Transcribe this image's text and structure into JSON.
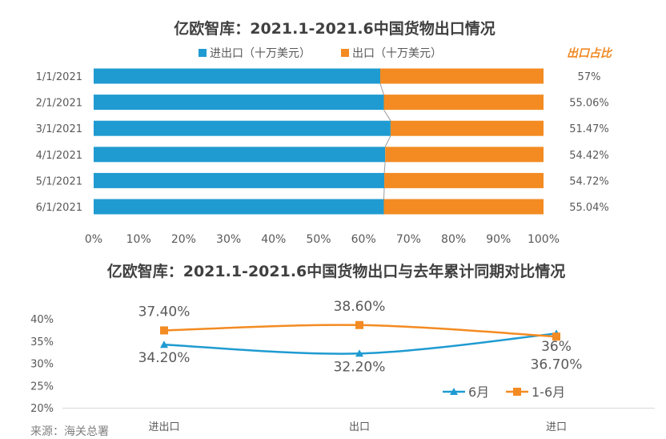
{
  "chart_data": [
    {
      "type": "bar",
      "stacked": true,
      "orientation": "horizontal",
      "percent": true,
      "title": "亿欧智库：2021.1-2021.6中国货物出口情况",
      "legend": [
        "进出口（十万美元）",
        "出口（十万美元）"
      ],
      "series_colors": [
        "#1f9bd1",
        "#f38b22"
      ],
      "categories": [
        "1/1/2021",
        "2/1/2021",
        "3/1/2021",
        "4/1/2021",
        "5/1/2021",
        "6/1/2021"
      ],
      "series": [
        {
          "name": "进出口（十万美元）",
          "values": [
            63.7,
            64.5,
            66.0,
            64.8,
            64.6,
            64.5
          ]
        },
        {
          "name": "出口（十万美元）",
          "values": [
            36.3,
            35.5,
            34.0,
            35.2,
            35.4,
            35.5
          ]
        }
      ],
      "ratio_header": "出口占比",
      "ratio_labels": [
        "57%",
        "55.06%",
        "51.47%",
        "54.42%",
        "54.72%",
        "55.04%"
      ],
      "xticks": [
        "0%",
        "10%",
        "20%",
        "30%",
        "40%",
        "50%",
        "60%",
        "70%",
        "80%",
        "90%",
        "100%"
      ],
      "xlim": [
        0,
        100
      ]
    },
    {
      "type": "line",
      "title": "亿欧智库：2021.1-2021.6中国货物出口与去年累计同期对比情况",
      "categories": [
        "进出口",
        "出口",
        "进口"
      ],
      "series": [
        {
          "name": "6月",
          "values": [
            34.2,
            32.2,
            36.7
          ],
          "labels": [
            "34.20%",
            "32.20%",
            "36.70%"
          ],
          "color": "#1f9bd1",
          "marker": "triangle"
        },
        {
          "name": "1-6月",
          "values": [
            37.4,
            38.6,
            36.0
          ],
          "labels": [
            "37.40%",
            "38.60%",
            "36%"
          ],
          "color": "#f38b22",
          "marker": "square"
        }
      ],
      "yticks": [
        "20%",
        "25%",
        "30%",
        "35%",
        "40%"
      ],
      "ylim": [
        20,
        40
      ]
    }
  ],
  "source_text": "来源：海关总署"
}
